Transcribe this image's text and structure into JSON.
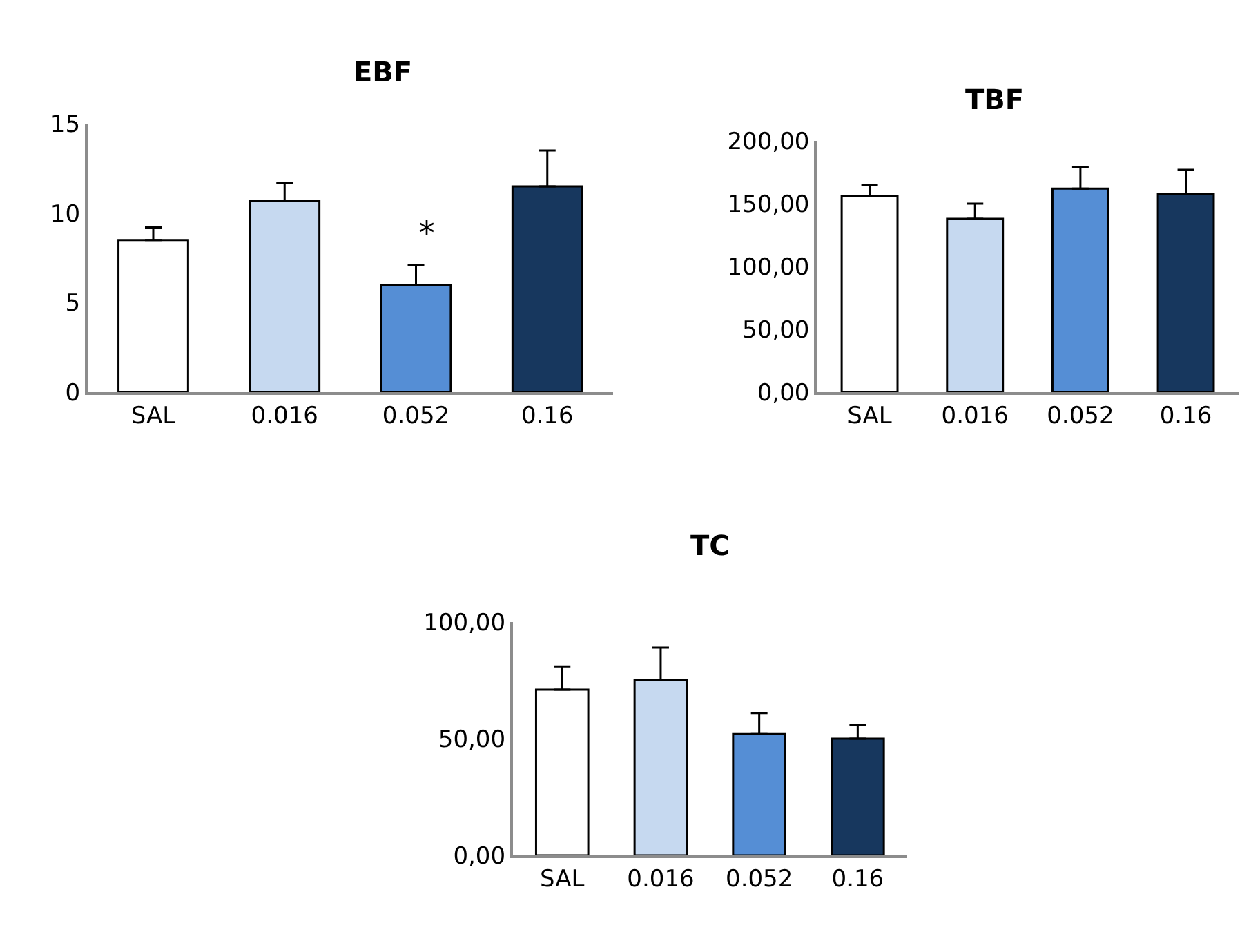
{
  "chart_data": [
    {
      "type": "bar",
      "title": "EBF",
      "categories": [
        "SAL",
        "0.016",
        "0.052",
        "0.16"
      ],
      "values": [
        8.5,
        10.7,
        6.0,
        11.5
      ],
      "colors": [
        "#ffffff",
        "#c6d9f0",
        "#558ed5",
        "#17375e"
      ],
      "errors": [
        [
          8.5,
          9.2
        ],
        [
          10.7,
          11.7
        ],
        [
          6.0,
          7.1
        ],
        [
          11.5,
          13.5
        ]
      ],
      "ylim": [
        0,
        15
      ],
      "yticks": [
        0,
        5,
        10,
        15
      ],
      "annotations": [
        "*"
      ]
    },
    {
      "type": "bar",
      "title": "TBF",
      "categories": [
        "SAL",
        "0.016",
        "0.052",
        "0.16"
      ],
      "values": [
        156,
        138,
        162,
        158
      ],
      "colors": [
        "#ffffff",
        "#c6d9f0",
        "#558ed5",
        "#17375e"
      ],
      "errors": [
        [
          156,
          165
        ],
        [
          138,
          150
        ],
        [
          162,
          179
        ],
        [
          158,
          177
        ]
      ],
      "ylim": [
        0,
        200
      ],
      "yticks": [
        {
          "value": 0,
          "label": "0,00"
        },
        {
          "value": 50,
          "label": "50,00"
        },
        {
          "value": 100,
          "label": "100,00"
        },
        {
          "value": 150,
          "label": "150,00"
        },
        {
          "value": 200,
          "label": "200,00"
        }
      ]
    },
    {
      "type": "bar",
      "title": "TC",
      "categories": [
        "SAL",
        "0.016",
        "0.052",
        "0.16"
      ],
      "values": [
        71,
        75,
        52,
        50
      ],
      "colors": [
        "#ffffff",
        "#c6d9f0",
        "#558ed5",
        "#17375e"
      ],
      "errors": [
        [
          71,
          81
        ],
        [
          75,
          89
        ],
        [
          52,
          61
        ],
        [
          50,
          56
        ]
      ],
      "ylim": [
        0,
        100
      ],
      "yticks": [
        {
          "value": 0,
          "label": "0,00"
        },
        {
          "value": 50,
          "label": "50,00"
        },
        {
          "value": 100,
          "label": "100,00"
        }
      ]
    }
  ]
}
